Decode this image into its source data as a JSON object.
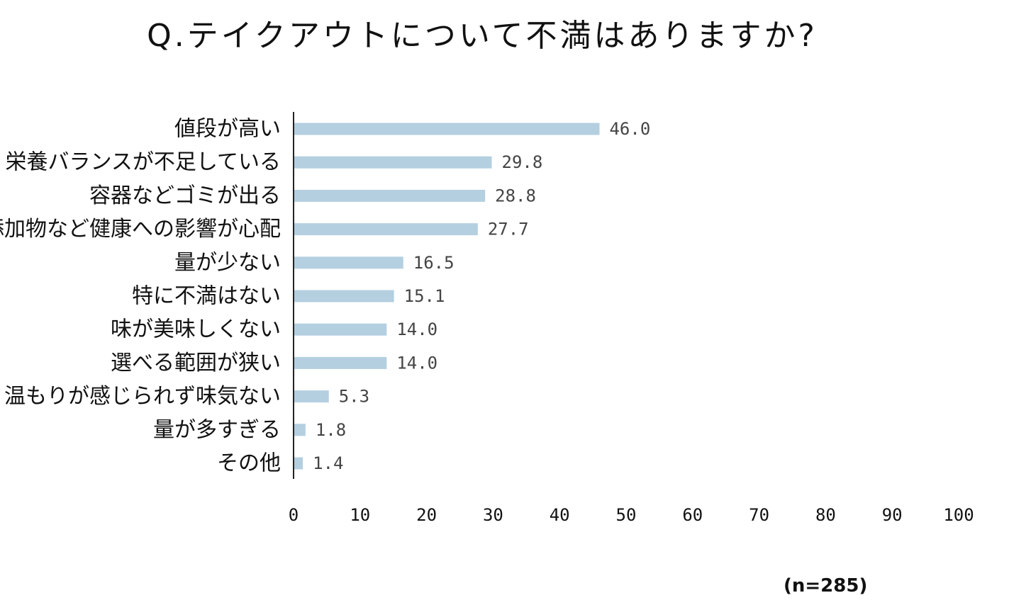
{
  "chart_data": {
    "type": "bar",
    "orientation": "horizontal",
    "title": "Q.テイクアウトについて不満はありますか?",
    "categories": [
      "値段が高い",
      "栄養バランスが不足している",
      "容器などゴミが出る",
      "添加物など健康への影響が心配",
      "量が少ない",
      "特に不満はない",
      "味が美味しくない",
      "選べる範囲が狭い",
      "温もりが感じられず味気ない",
      "量が多すぎる",
      "その他"
    ],
    "values": [
      46.0,
      29.8,
      28.8,
      27.7,
      16.5,
      15.1,
      14.0,
      14.0,
      5.3,
      1.8,
      1.4
    ],
    "value_labels": [
      "46.0",
      "29.8",
      "28.8",
      "27.7",
      "16.5",
      "15.1",
      "14.0",
      "14.0",
      "5.3",
      "1.8",
      "1.4"
    ],
    "xlim": [
      0,
      100
    ],
    "xticks": [
      "0",
      "10",
      "20",
      "30",
      "40",
      "50",
      "60",
      "70",
      "80",
      "90",
      "100"
    ],
    "xlabel": "",
    "ylabel": "",
    "grid": false,
    "bar_color": "#b4cfe0",
    "note": "(n=285)"
  }
}
